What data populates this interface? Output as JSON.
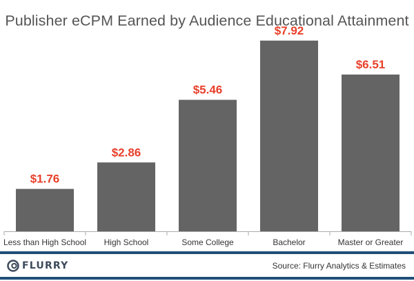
{
  "chart_data": {
    "type": "bar",
    "title": "Publisher eCPM Earned by Audience Educational Attainment",
    "categories": [
      "Less than High School",
      "High School",
      "Some College",
      "Bachelor",
      "Master or Greater"
    ],
    "values": [
      1.76,
      2.86,
      5.46,
      7.92,
      6.51
    ],
    "value_labels": [
      "$1.76",
      "$2.86",
      "$5.46",
      "$7.92",
      "$6.51"
    ],
    "xlabel": "",
    "ylabel": "",
    "ylim": [
      0,
      8
    ],
    "grid": false,
    "colors": {
      "bar": "#646464",
      "label": "#e8402a",
      "axis": "#aaaaaa"
    }
  },
  "footer": {
    "brand": "FLURRY",
    "source": "Source: Flurry Analytics & Estimates"
  },
  "colors": {
    "accent_line": "#1f4e79"
  }
}
